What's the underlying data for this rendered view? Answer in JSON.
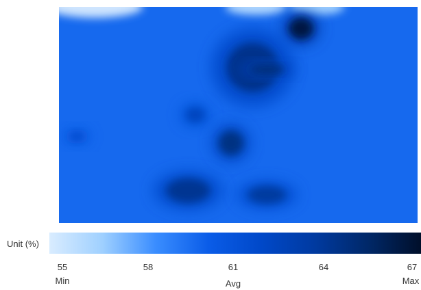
{
  "chart_data": {
    "type": "heatmap",
    "title": "",
    "unit_label": "Unit (%)",
    "colorbar": {
      "min": 55,
      "max": 67,
      "avg": 61,
      "ticks": [
        "55",
        "58",
        "61",
        "64",
        "67"
      ],
      "tick_words": [
        "Min",
        "Avg",
        "Max"
      ],
      "colors": [
        "#d9ecff",
        "#9fd0ff",
        "#3a8dff",
        "#0a5ce8",
        "#0048c8",
        "#003aa0",
        "#002868",
        "#000f2a"
      ]
    },
    "base_value": 59.7,
    "hotspots": [
      {
        "label": "top-dark-spot",
        "x": 0.675,
        "y": 0.1,
        "value": 66.3
      },
      {
        "label": "upper-center-blob",
        "x": 0.54,
        "y": 0.28,
        "value": 64.2
      },
      {
        "label": "upper-center-dash",
        "x": 0.58,
        "y": 0.29,
        "value": 65.0
      },
      {
        "label": "left-mid-spot",
        "x": 0.38,
        "y": 0.5,
        "value": 62.3
      },
      {
        "label": "center-spot",
        "x": 0.48,
        "y": 0.63,
        "value": 64.5
      },
      {
        "label": "lower-left-spot",
        "x": 0.36,
        "y": 0.85,
        "value": 64.0
      },
      {
        "label": "lower-center-spot",
        "x": 0.58,
        "y": 0.87,
        "value": 63.6
      },
      {
        "label": "far-left-spot",
        "x": 0.05,
        "y": 0.6,
        "value": 61.5
      }
    ],
    "lows": [
      {
        "label": "top-left-edge",
        "x": 0.1,
        "y": 0.0,
        "value": 55
      },
      {
        "label": "top-middle-edge",
        "x": 0.55,
        "y": 0.0,
        "value": 56
      },
      {
        "label": "top-right-edge",
        "x": 0.72,
        "y": 0.0,
        "value": 56.5
      }
    ]
  }
}
